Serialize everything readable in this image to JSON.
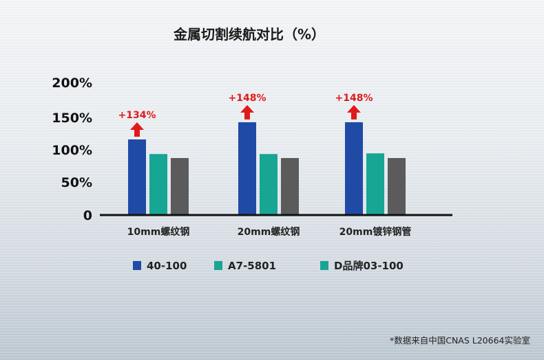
{
  "chart_data": {
    "type": "bar",
    "title": "金属切割续航对比（%）",
    "categories": [
      "10mm螺纹钢",
      "20mm螺纹钢",
      "20mm镀锌钢管"
    ],
    "yticks": [
      "0",
      "50%",
      "100%",
      "150%",
      "200%"
    ],
    "ylim": [
      0,
      200
    ],
    "series": [
      {
        "name": "40-100",
        "color": "#1f4aa6",
        "values": [
          114,
          140,
          140
        ]
      },
      {
        "name": "A7-5801",
        "color": "#17a594",
        "values": [
          92,
          92,
          93
        ]
      },
      {
        "name": "D品牌03-100",
        "color": "#5b5b5b",
        "values": [
          86,
          86,
          86
        ]
      }
    ],
    "legend_colors": [
      "#1f4aa6",
      "#17a594",
      "#17a594"
    ],
    "annotations": [
      "+134%",
      "+148%",
      "+148%"
    ],
    "annotation_color": "#e01a1a",
    "legend_position": "bottom"
  },
  "footnote": "*数据来自中国CNAS L20664实验室"
}
